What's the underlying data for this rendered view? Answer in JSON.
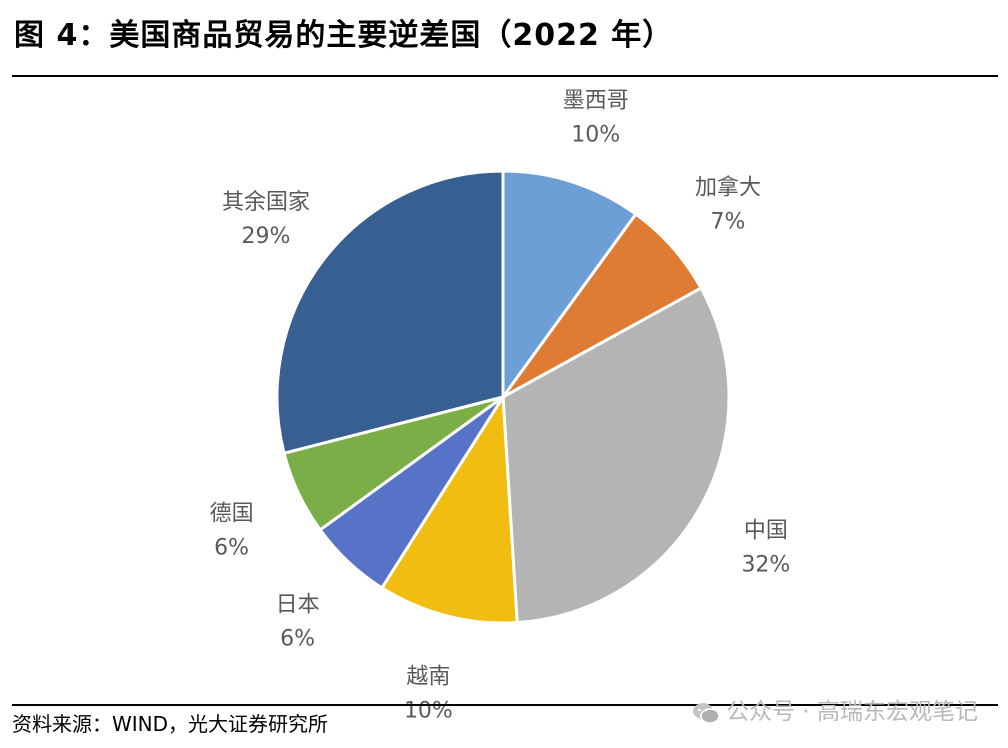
{
  "title": "图 4：美国商品贸易的主要逆差国（2022 年）",
  "source": "资料来源：WIND，光大证券研究所",
  "watermark": "公众号 · 高瑞东宏观笔记",
  "watermark_icon": "wechat-icon",
  "chart_data": {
    "type": "pie",
    "title": "",
    "start_angle_deg": 0,
    "direction": "clockwise",
    "slices": [
      {
        "label": "墨西哥",
        "value": 10,
        "value_label": "10%",
        "color": "#6d9ed6"
      },
      {
        "label": "加拿大",
        "value": 7,
        "value_label": "7%",
        "color": "#e07b33"
      },
      {
        "label": "中国",
        "value": 32,
        "value_label": "32%",
        "color": "#b4b4b4"
      },
      {
        "label": "越南",
        "value": 10,
        "value_label": "10%",
        "color": "#f2bd11"
      },
      {
        "label": "日本",
        "value": 6,
        "value_label": "6%",
        "color": "#5673c7"
      },
      {
        "label": "德国",
        "value": 6,
        "value_label": "6%",
        "color": "#7cae47"
      },
      {
        "label": "其余国家",
        "value": 29,
        "value_label": "29%",
        "color": "#375f92"
      }
    ]
  }
}
